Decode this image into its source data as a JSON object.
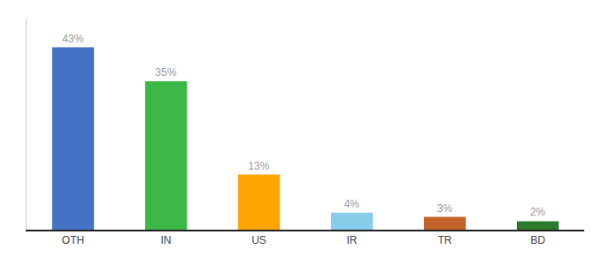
{
  "chart_data": {
    "type": "bar",
    "categories": [
      "OTH",
      "IN",
      "US",
      "IR",
      "TR",
      "BD"
    ],
    "values": [
      43,
      35,
      13,
      4,
      3,
      2
    ],
    "value_labels": [
      "43%",
      "35%",
      "13%",
      "4%",
      "3%",
      "2%"
    ],
    "data_labels": true,
    "colors": [
      "#4472C4",
      "#3CB848",
      "#FFA500",
      "#87CEEB",
      "#C0622A",
      "#2D7A2D"
    ],
    "ylim": [
      0,
      50
    ],
    "grid": false,
    "tick_labels": "x"
  }
}
